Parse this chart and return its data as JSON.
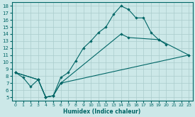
{
  "xlabel": "Humidex (Indice chaleur)",
  "bg_color": "#cce8e8",
  "grid_color": "#aacccc",
  "line_color": "#006666",
  "xlim": [
    -0.5,
    23.5
  ],
  "ylim": [
    4.5,
    18.5
  ],
  "xticks": [
    0,
    1,
    2,
    3,
    4,
    5,
    6,
    7,
    8,
    9,
    10,
    11,
    12,
    13,
    14,
    15,
    16,
    17,
    18,
    19,
    20,
    21,
    22,
    23
  ],
  "yticks": [
    5,
    6,
    7,
    8,
    9,
    10,
    11,
    12,
    13,
    14,
    15,
    16,
    17,
    18
  ],
  "line1_x": [
    0,
    1,
    2,
    3,
    4,
    5,
    6,
    7,
    8,
    9,
    10,
    11,
    12,
    13,
    14,
    15,
    16,
    17,
    18,
    19,
    20
  ],
  "line1_y": [
    8.5,
    7.8,
    6.5,
    7.5,
    5.0,
    5.2,
    7.8,
    8.5,
    10.2,
    12.0,
    13.0,
    14.2,
    15.0,
    16.8,
    18.0,
    17.5,
    16.3,
    16.3,
    14.2,
    13.2,
    12.5
  ],
  "line2_x": [
    0,
    3,
    4,
    5,
    6,
    14,
    15,
    19,
    23
  ],
  "line2_y": [
    8.5,
    7.5,
    5.0,
    5.2,
    7.0,
    14.0,
    13.5,
    13.2,
    11.0
  ],
  "line3_x": [
    0,
    3,
    4,
    5,
    6,
    23
  ],
  "line3_y": [
    8.5,
    7.5,
    5.0,
    5.2,
    7.0,
    11.0
  ]
}
